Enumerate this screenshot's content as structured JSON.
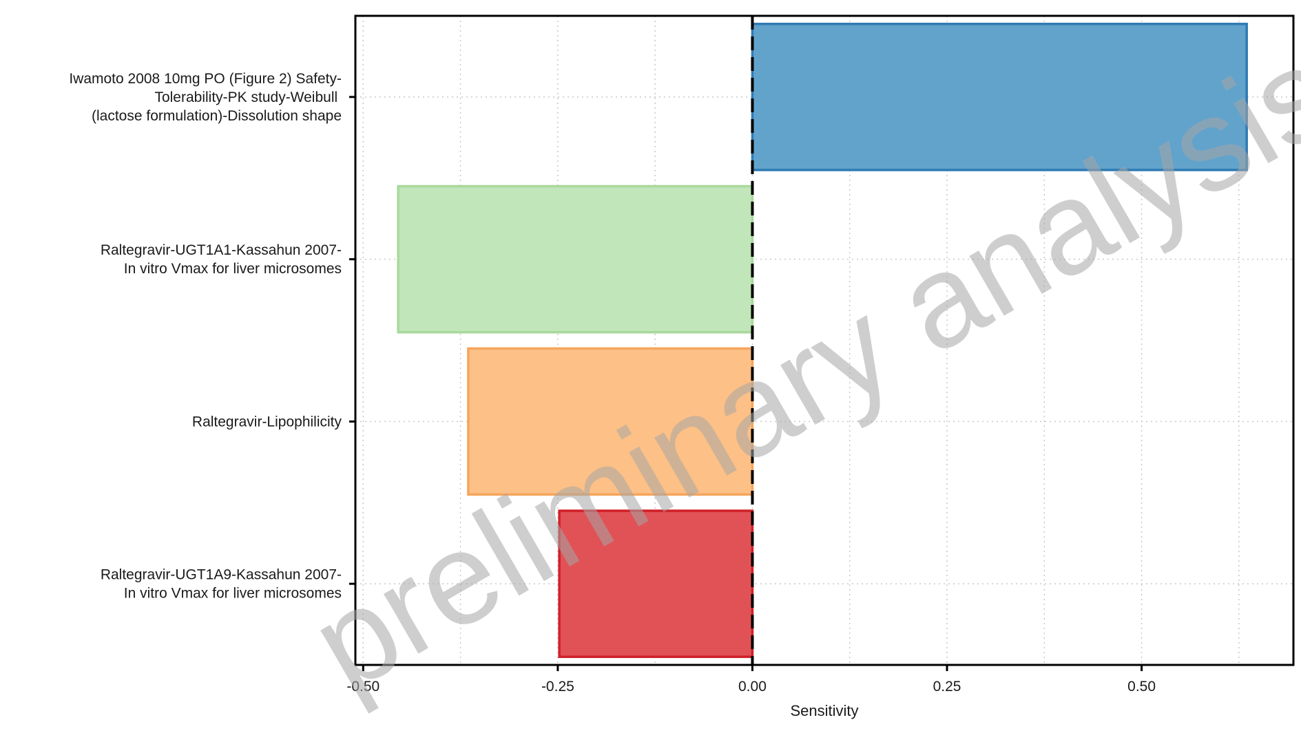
{
  "chart_data": {
    "type": "bar",
    "orientation": "horizontal",
    "categories": [
      "Iwamoto 2008 10mg PO (Figure 2) Safety-Tolerability-PK study-Weibull (lactose formulation)-Dissolution shape",
      "Raltegravir-UGT1A1-Kassahun 2007-In vitro Vmax for liver microsomes",
      "Raltegravir-Lipophilicity",
      "Raltegravir-UGT1A9-Kassahun 2007-In vitro Vmax for liver microsomes"
    ],
    "category_lines": [
      [
        "Iwamoto 2008 10mg PO (Figure 2) Safety-",
        "Tolerability-PK study-Weibull ",
        "(lactose formulation)-Dissolution shape"
      ],
      [
        "Raltegravir-UGT1A1-Kassahun 2007-",
        "In vitro Vmax for liver microsomes"
      ],
      [
        "Raltegravir-Lipophilicity"
      ],
      [
        "Raltegravir-UGT1A9-Kassahun 2007-",
        "In vitro Vmax for liver microsomes"
      ]
    ],
    "values": [
      0.635,
      -0.455,
      -0.365,
      -0.248
    ],
    "colors": [
      "#62a3cc",
      "#c1e6b9",
      "#fdc086",
      "#e15257"
    ],
    "border_colors": [
      "#2f7ab3",
      "#a8d99c",
      "#f5a55c",
      "#d11f28"
    ],
    "xlabel": "Sensitivity",
    "ylabel": "",
    "xlim": [
      -0.51,
      0.695
    ],
    "xticks": [
      -0.5,
      -0.25,
      0.0,
      0.25,
      0.5
    ],
    "xtick_labels": [
      "-0.50",
      "-0.25",
      "0.00",
      "0.25",
      "0.50"
    ],
    "grid": true,
    "zero_line": "dashed",
    "watermark": "preliminary analysis",
    "legend": "none"
  }
}
